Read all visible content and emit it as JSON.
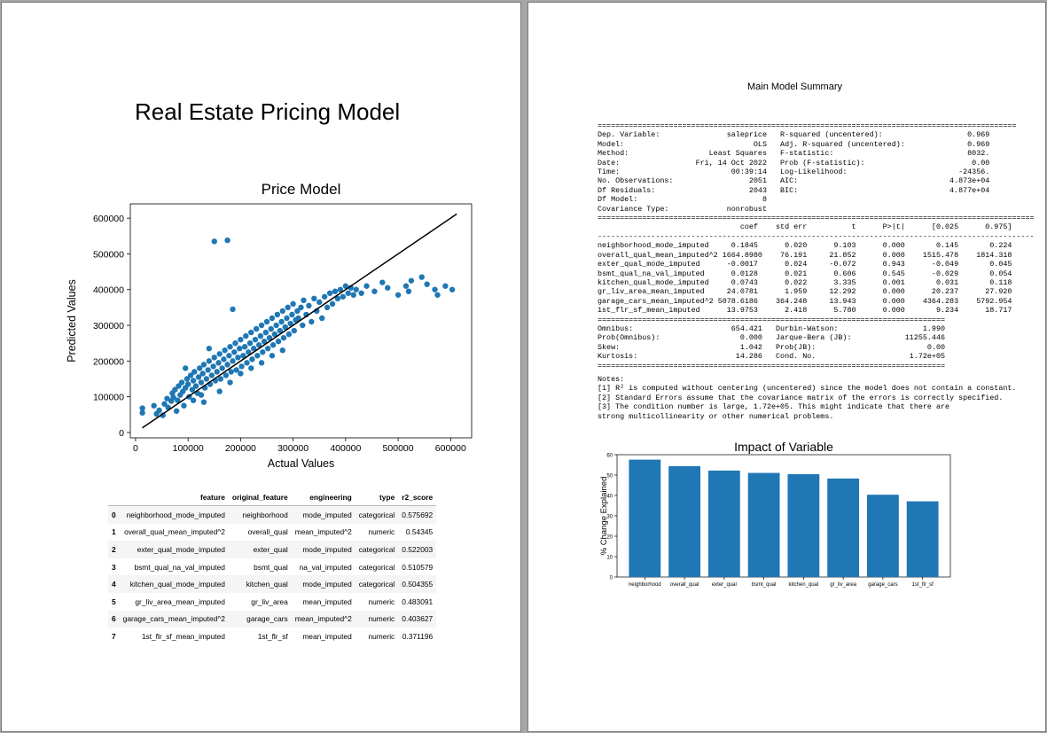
{
  "page1": {
    "report_title": "Real Estate Pricing Model",
    "table": {
      "columns": [
        "",
        "feature",
        "original_feature",
        "engineering",
        "type",
        "r2_score"
      ],
      "rows": [
        [
          "0",
          "neighborhood_mode_imputed",
          "neighborhood",
          "mode_imputed",
          "categorical",
          "0.575692"
        ],
        [
          "1",
          "overall_qual_mean_imputed^2",
          "overall_qual",
          "mean_imputed^2",
          "numeric",
          "0.54345"
        ],
        [
          "2",
          "exter_qual_mode_imputed",
          "exter_qual",
          "mode_imputed",
          "categorical",
          "0.522003"
        ],
        [
          "3",
          "bsmt_qual_na_val_imputed",
          "bsmt_qual",
          "na_val_imputed",
          "categorical",
          "0.510579"
        ],
        [
          "4",
          "kitchen_qual_mode_imputed",
          "kitchen_qual",
          "mode_imputed",
          "categorical",
          "0.504355"
        ],
        [
          "5",
          "gr_liv_area_mean_imputed",
          "gr_liv_area",
          "mean_imputed",
          "numeric",
          "0.483091"
        ],
        [
          "6",
          "garage_cars_mean_imputed^2",
          "garage_cars",
          "mean_imputed^2",
          "numeric",
          "0.403627"
        ],
        [
          "7",
          "1st_flr_sf_mean_imputed",
          "1st_flr_sf",
          "mean_imputed",
          "numeric",
          "0.371196"
        ]
      ]
    }
  },
  "page2": {
    "summary_title": "Main Model Summary",
    "ols_summary": "==============================================================================================\nDep. Variable:               saleprice   R-squared (uncentered):                   0.969\nModel:                             OLS   Adj. R-squared (uncentered):              0.969\nMethod:                  Least Squares   F-statistic:                              8032.\nDate:                 Fri, 14 Oct 2022   Prob (F-statistic):                        0.00\nTime:                         00:39:14   Log-Likelihood:                         -24356.\nNo. Observations:                 2051   AIC:                                  4.873e+04\nDf Residuals:                     2043   BIC:                                  4.877e+04\nDf Model:                            8                                                  \nCovariance Type:             nonrobust                                                  \n==================================================================================================\n                                coef    std err          t      P>|t|      [0.025      0.975]\n--------------------------------------------------------------------------------------------------\nneighborhood_mode_imputed     0.1845      0.020      9.103      0.000       0.145       0.224\noverall_qual_mean_imputed^2 1664.8980    76.191     21.852      0.000    1515.478    1814.318\nexter_qual_mode_imputed      -0.0017      0.024     -0.072      0.943      -0.049       0.045\nbsmt_qual_na_val_imputed      0.0128      0.021      0.606      0.545      -0.029       0.054\nkitchen_qual_mode_imputed     0.0743      0.022      3.335      0.001       0.031       0.118\ngr_liv_area_mean_imputed     24.0781      1.959     12.292      0.000      20.237      27.920\ngarage_cars_mean_imputed^2 5078.6186    364.248     13.943      0.000    4364.283    5792.954\n1st_flr_sf_mean_imputed      13.9753      2.418      5.780      0.000       9.234      18.717\n==============================================================================\nOmnibus:                      654.421   Durbin-Watson:                   1.990\nProb(Omnibus):                  0.000   Jarque-Bera (JB):            11255.446\nSkew:                           1.042   Prob(JB):                         0.00\nKurtosis:                      14.286   Cond. No.                     1.72e+05\n==============================================================================",
    "notes": "Notes:\n[1] R² is computed without centering (uncentered) since the model does not contain a constant.\n[2] Standard Errors assume that the covariance matrix of the errors is correctly specified.\n[3] The condition number is large, 1.72e+05. This might indicate that there are\nstrong multicollinearity or other numerical problems."
  },
  "colors": {
    "accent": "#1f77b4",
    "fit_line": "#000000"
  },
  "chart_data": [
    {
      "id": "price_model",
      "type": "scatter",
      "title": "Price Model",
      "xlabel": "Actual Values",
      "ylabel": "Predicted Values",
      "xlim": [
        -10000,
        640000
      ],
      "ylim": [
        -15000,
        640000
      ],
      "xticks": [
        0,
        100000,
        200000,
        300000,
        400000,
        500000,
        600000
      ],
      "yticks": [
        0,
        100000,
        200000,
        300000,
        400000,
        500000,
        600000
      ],
      "fit_line": [
        [
          12789,
          12789
        ],
        [
          611657,
          611657
        ]
      ],
      "points": [
        [
          35000,
          75000
        ],
        [
          13000,
          55000
        ],
        [
          13000,
          68000
        ],
        [
          40000,
          52000
        ],
        [
          45000,
          62000
        ],
        [
          52000,
          48000
        ],
        [
          55000,
          80000
        ],
        [
          60000,
          95000
        ],
        [
          62000,
          70000
        ],
        [
          68000,
          88000
        ],
        [
          70000,
          110000
        ],
        [
          72000,
          98000
        ],
        [
          75000,
          120000
        ],
        [
          78000,
          60000
        ],
        [
          80000,
          90000
        ],
        [
          82000,
          130000
        ],
        [
          85000,
          105000
        ],
        [
          88000,
          140000
        ],
        [
          90000,
          115000
        ],
        [
          92000,
          75000
        ],
        [
          95000,
          125000
        ],
        [
          98000,
          150000
        ],
        [
          100000,
          135000
        ],
        [
          102000,
          100000
        ],
        [
          105000,
          160000
        ],
        [
          108000,
          120000
        ],
        [
          110000,
          145000
        ],
        [
          112000,
          170000
        ],
        [
          115000,
          130000
        ],
        [
          118000,
          110000
        ],
        [
          120000,
          155000
        ],
        [
          122000,
          180000
        ],
        [
          125000,
          140000
        ],
        [
          128000,
          165000
        ],
        [
          130000,
          190000
        ],
        [
          132000,
          125000
        ],
        [
          135000,
          150000
        ],
        [
          138000,
          175000
        ],
        [
          140000,
          200000
        ],
        [
          142000,
          135000
        ],
        [
          145000,
          160000
        ],
        [
          148000,
          185000
        ],
        [
          150000,
          210000
        ],
        [
          152000,
          145000
        ],
        [
          155000,
          170000
        ],
        [
          158000,
          195000
        ],
        [
          160000,
          220000
        ],
        [
          162000,
          150000
        ],
        [
          165000,
          180000
        ],
        [
          168000,
          205000
        ],
        [
          170000,
          230000
        ],
        [
          172000,
          160000
        ],
        [
          175000,
          190000
        ],
        [
          178000,
          215000
        ],
        [
          180000,
          240000
        ],
        [
          182000,
          170000
        ],
        [
          185000,
          200000
        ],
        [
          188000,
          225000
        ],
        [
          190000,
          250000
        ],
        [
          192000,
          175000
        ],
        [
          195000,
          210000
        ],
        [
          198000,
          235000
        ],
        [
          200000,
          260000
        ],
        [
          202000,
          185000
        ],
        [
          205000,
          215000
        ],
        [
          208000,
          240000
        ],
        [
          210000,
          270000
        ],
        [
          212000,
          195000
        ],
        [
          215000,
          225000
        ],
        [
          218000,
          250000
        ],
        [
          220000,
          280000
        ],
        [
          222000,
          205000
        ],
        [
          225000,
          235000
        ],
        [
          228000,
          260000
        ],
        [
          230000,
          290000
        ],
        [
          232000,
          215000
        ],
        [
          235000,
          245000
        ],
        [
          238000,
          270000
        ],
        [
          240000,
          300000
        ],
        [
          242000,
          225000
        ],
        [
          245000,
          255000
        ],
        [
          248000,
          280000
        ],
        [
          250000,
          310000
        ],
        [
          252000,
          235000
        ],
        [
          255000,
          265000
        ],
        [
          258000,
          290000
        ],
        [
          260000,
          320000
        ],
        [
          262000,
          245000
        ],
        [
          265000,
          275000
        ],
        [
          268000,
          300000
        ],
        [
          270000,
          330000
        ],
        [
          272000,
          255000
        ],
        [
          275000,
          285000
        ],
        [
          278000,
          310000
        ],
        [
          280000,
          340000
        ],
        [
          282000,
          265000
        ],
        [
          285000,
          295000
        ],
        [
          288000,
          320000
        ],
        [
          290000,
          350000
        ],
        [
          292000,
          275000
        ],
        [
          295000,
          305000
        ],
        [
          298000,
          330000
        ],
        [
          300000,
          360000
        ],
        [
          302000,
          285000
        ],
        [
          305000,
          315000
        ],
        [
          308000,
          340000
        ],
        [
          310000,
          320000
        ],
        [
          315000,
          350000
        ],
        [
          318000,
          300000
        ],
        [
          320000,
          370000
        ],
        [
          325000,
          330000
        ],
        [
          330000,
          355000
        ],
        [
          335000,
          310000
        ],
        [
          340000,
          375000
        ],
        [
          345000,
          340000
        ],
        [
          350000,
          365000
        ],
        [
          355000,
          320000
        ],
        [
          360000,
          380000
        ],
        [
          365000,
          350000
        ],
        [
          370000,
          390000
        ],
        [
          375000,
          360000
        ],
        [
          380000,
          395000
        ],
        [
          385000,
          375000
        ],
        [
          390000,
          400000
        ],
        [
          395000,
          380000
        ],
        [
          400000,
          410000
        ],
        [
          405000,
          390000
        ],
        [
          410000,
          405000
        ],
        [
          415000,
          385000
        ],
        [
          420000,
          400000
        ],
        [
          430000,
          390000
        ],
        [
          440000,
          410000
        ],
        [
          455000,
          395000
        ],
        [
          470000,
          420000
        ],
        [
          480000,
          405000
        ],
        [
          500000,
          385000
        ],
        [
          520000,
          395000
        ],
        [
          525000,
          425000
        ],
        [
          545000,
          435000
        ],
        [
          555000,
          415000
        ],
        [
          570000,
          400000
        ],
        [
          575000,
          385000
        ],
        [
          590000,
          410000
        ],
        [
          603000,
          400000
        ],
        [
          515000,
          410000
        ],
        [
          185000,
          345000
        ],
        [
          150000,
          535000
        ],
        [
          175000,
          538000
        ],
        [
          140000,
          235000
        ],
        [
          95000,
          180000
        ],
        [
          110000,
          90000
        ],
        [
          125000,
          105000
        ],
        [
          160000,
          115000
        ],
        [
          180000,
          140000
        ],
        [
          200000,
          165000
        ],
        [
          220000,
          180000
        ],
        [
          240000,
          195000
        ],
        [
          260000,
          215000
        ],
        [
          280000,
          230000
        ],
        [
          130000,
          85000
        ]
      ]
    },
    {
      "id": "impact_of_variable",
      "type": "bar",
      "title": "Impact of Variable",
      "xlabel": "",
      "ylabel": "% Change Explained",
      "ylim": [
        0,
        60
      ],
      "yticks": [
        0,
        10,
        20,
        30,
        40,
        50,
        60
      ],
      "categories": [
        "neighborhood",
        "overall_qual",
        "exter_qual",
        "bsmt_qual",
        "kitchen_qual",
        "gr_liv_area",
        "garage_cars",
        "1st_flr_sf"
      ],
      "values": [
        57.57,
        54.35,
        52.2,
        51.06,
        50.44,
        48.31,
        40.36,
        37.12
      ]
    }
  ]
}
